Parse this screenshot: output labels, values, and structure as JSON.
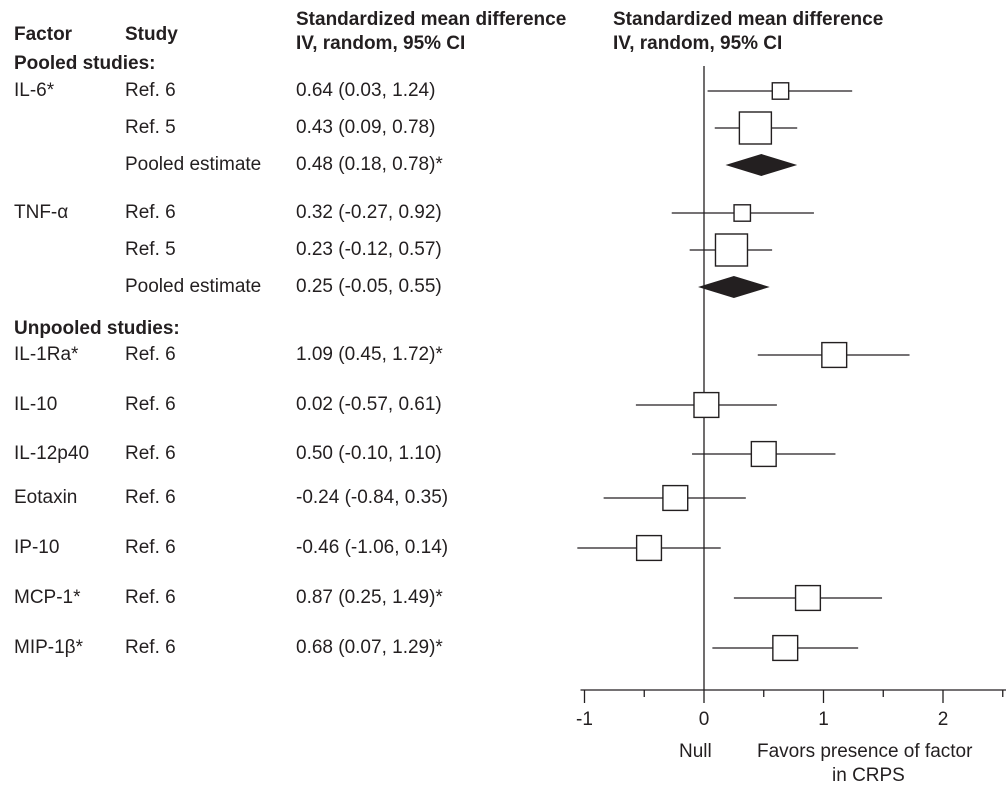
{
  "header": {
    "factor": "Factor",
    "study": "Study",
    "effect_line1": "Standardized mean difference",
    "effect_line2": "IV, random, 95% CI",
    "plot_line1": "Standardized mean difference",
    "plot_line2": "IV, random, 95% CI"
  },
  "sections": {
    "pooled": "Pooled studies:",
    "unpooled": "Unpooled studies:"
  },
  "axis": {
    "xmin": -1,
    "xmax": 2.5,
    "ticks": [
      -1,
      0,
      1,
      2
    ],
    "null_label": "Null",
    "favors_line1": "Favors presence of factor",
    "favors_line2": "in CRPS"
  },
  "chart_data": {
    "type": "forest",
    "rows": [
      {
        "factor": "IL-6*",
        "study": "Ref. 6",
        "estimate": 0.64,
        "lo": 0.03,
        "hi": 1.24,
        "text": "0.64 (0.03, 1.24)",
        "kind": "study",
        "weight": 0.35
      },
      {
        "factor": "",
        "study": "Ref. 5",
        "estimate": 0.43,
        "lo": 0.09,
        "hi": 0.78,
        "text": "0.43 (0.09, 0.78)",
        "kind": "study",
        "weight": 1.0
      },
      {
        "factor": "",
        "study": "Pooled estimate",
        "estimate": 0.48,
        "lo": 0.18,
        "hi": 0.78,
        "text": "0.48 (0.18, 0.78)*",
        "kind": "pooled"
      },
      {
        "factor": "TNF-α",
        "study": "Ref. 6",
        "estimate": 0.32,
        "lo": -0.27,
        "hi": 0.92,
        "text": "0.32 (-0.27, 0.92)",
        "kind": "study",
        "weight": 0.35
      },
      {
        "factor": "",
        "study": "Ref. 5",
        "estimate": 0.23,
        "lo": -0.12,
        "hi": 0.57,
        "text": "0.23 (-0.12, 0.57)",
        "kind": "study",
        "weight": 1.0
      },
      {
        "factor": "",
        "study": "Pooled estimate",
        "estimate": 0.25,
        "lo": -0.05,
        "hi": 0.55,
        "text": "0.25 (-0.05, 0.55)",
        "kind": "pooled"
      },
      {
        "factor": "IL-1Ra*",
        "study": "Ref. 6",
        "estimate": 1.09,
        "lo": 0.45,
        "hi": 1.72,
        "text": "1.09 (0.45, 1.72)*",
        "kind": "study",
        "weight": 0.7
      },
      {
        "factor": "IL-10",
        "study": "Ref. 6",
        "estimate": 0.02,
        "lo": -0.57,
        "hi": 0.61,
        "text": "0.02 (-0.57, 0.61)",
        "kind": "study",
        "weight": 0.7
      },
      {
        "factor": "IL-12p40",
        "study": "Ref. 6",
        "estimate": 0.5,
        "lo": -0.1,
        "hi": 1.1,
        "text": "0.50 (-0.10, 1.10)",
        "kind": "study",
        "weight": 0.7
      },
      {
        "factor": "Eotaxin",
        "study": "Ref. 6",
        "estimate": -0.24,
        "lo": -0.84,
        "hi": 0.35,
        "text": "-0.24 (-0.84, 0.35)",
        "kind": "study",
        "weight": 0.7
      },
      {
        "factor": "IP-10",
        "study": "Ref. 6",
        "estimate": -0.46,
        "lo": -1.06,
        "hi": 0.14,
        "text": "-0.46 (-1.06, 0.14)",
        "kind": "study",
        "weight": 0.7
      },
      {
        "factor": "MCP-1*",
        "study": "Ref. 6",
        "estimate": 0.87,
        "lo": 0.25,
        "hi": 1.49,
        "text": "0.87 (0.25, 1.49)*",
        "kind": "study",
        "weight": 0.7
      },
      {
        "factor": "MIP-1β*",
        "study": "Ref. 6",
        "estimate": 0.68,
        "lo": 0.07,
        "hi": 1.29,
        "text": "0.68 (0.07, 1.29)*",
        "kind": "study",
        "weight": 0.7
      }
    ]
  }
}
